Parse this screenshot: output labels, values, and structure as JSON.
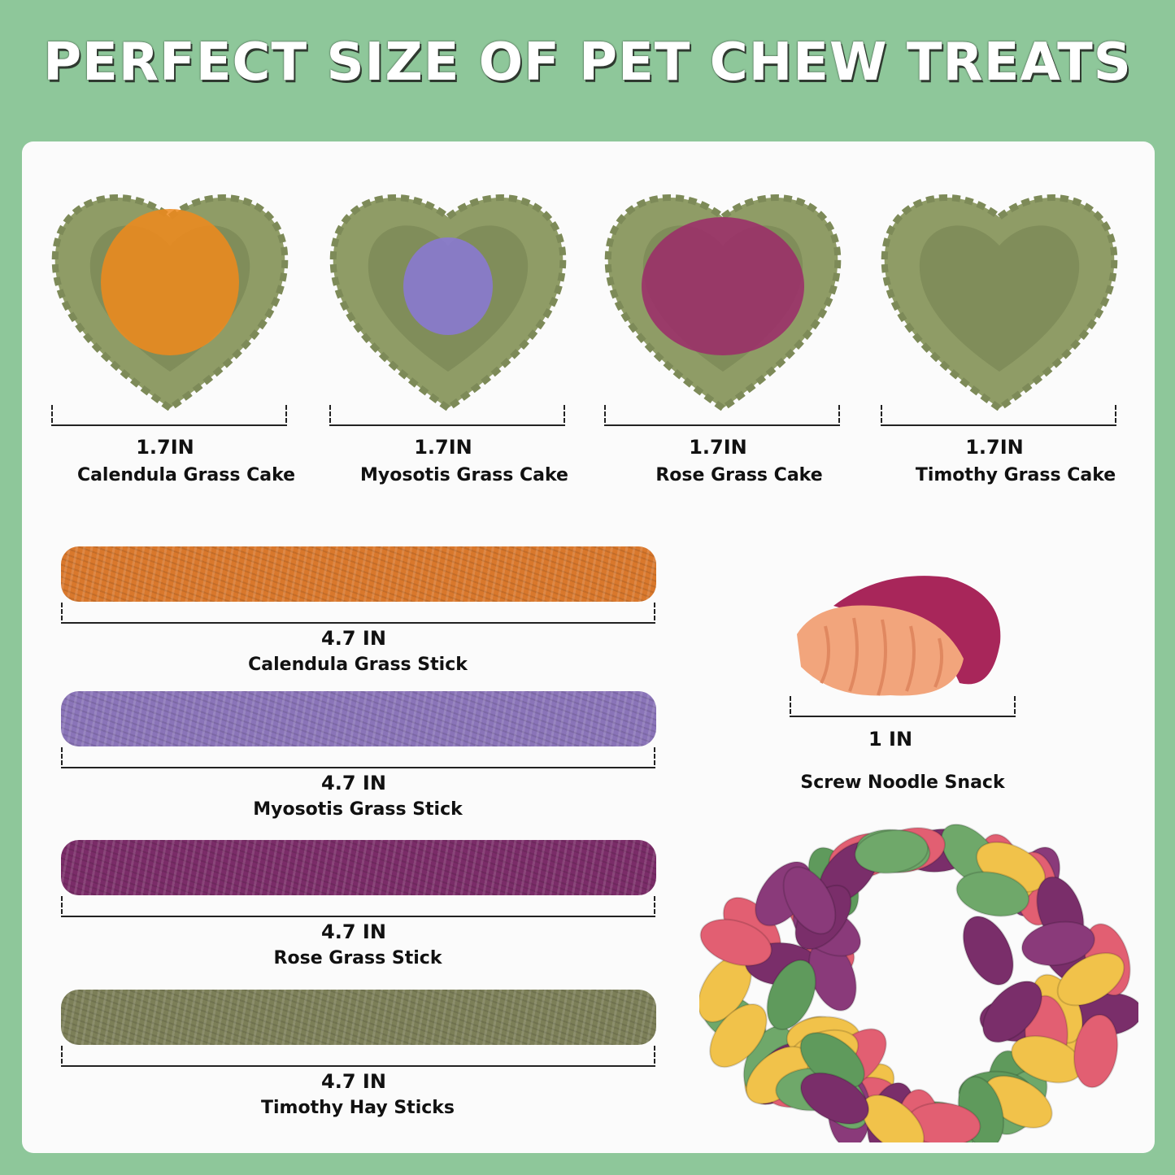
{
  "title": "PERFECT SIZE OF PET CHEW TREATS",
  "colors": {
    "background": "#8ec79a",
    "panel": "#fbfbfb",
    "title_text": "#ffffff"
  },
  "cakes": [
    {
      "size": "1.7IN",
      "name": "Calendula Grass Cake",
      "topping": "#f08a1c"
    },
    {
      "size": "1.7IN",
      "name": "Myosotis Grass Cake",
      "topping": "#8a78d8"
    },
    {
      "size": "1.7IN",
      "name": "Rose Grass Cake",
      "topping": "#9c2a6a"
    },
    {
      "size": "1.7IN",
      "name": "Timothy Grass Cake",
      "topping": "#8e9a66"
    }
  ],
  "sticks": [
    {
      "size": "4.7 IN",
      "name": "Calendula Grass Stick",
      "color": "#d9782c"
    },
    {
      "size": "4.7 IN",
      "name": "Myosotis Grass Stick",
      "color": "#8a74b8"
    },
    {
      "size": "4.7 IN",
      "name": "Rose Grass Stick",
      "color": "#7a2c68"
    },
    {
      "size": "4.7 IN",
      "name": "Timothy Hay Sticks",
      "color": "#7c7f58"
    }
  ],
  "noodle": {
    "size": "1 IN",
    "name": "Screw Noodle Snack"
  }
}
